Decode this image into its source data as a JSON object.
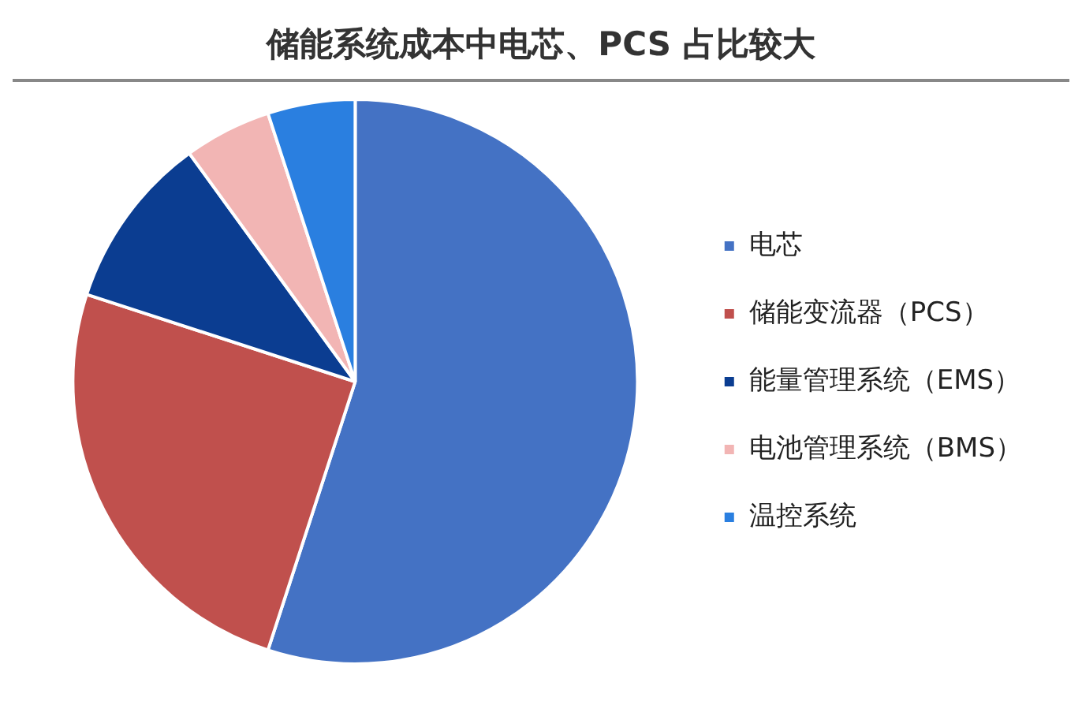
{
  "chart_data": {
    "type": "pie",
    "title": "储能系统成本中电芯、PCS 占比较大",
    "categories": [
      "电芯",
      "储能变流器（PCS）",
      "能量管理系统（EMS）",
      "电池管理系统（BMS）",
      "温控系统"
    ],
    "values": [
      55,
      25,
      10,
      5,
      5
    ],
    "colors": [
      "#4472c4",
      "#c0504d",
      "#0b3d91",
      "#f2b5b4",
      "#2a7fe0"
    ],
    "legend": "right"
  }
}
